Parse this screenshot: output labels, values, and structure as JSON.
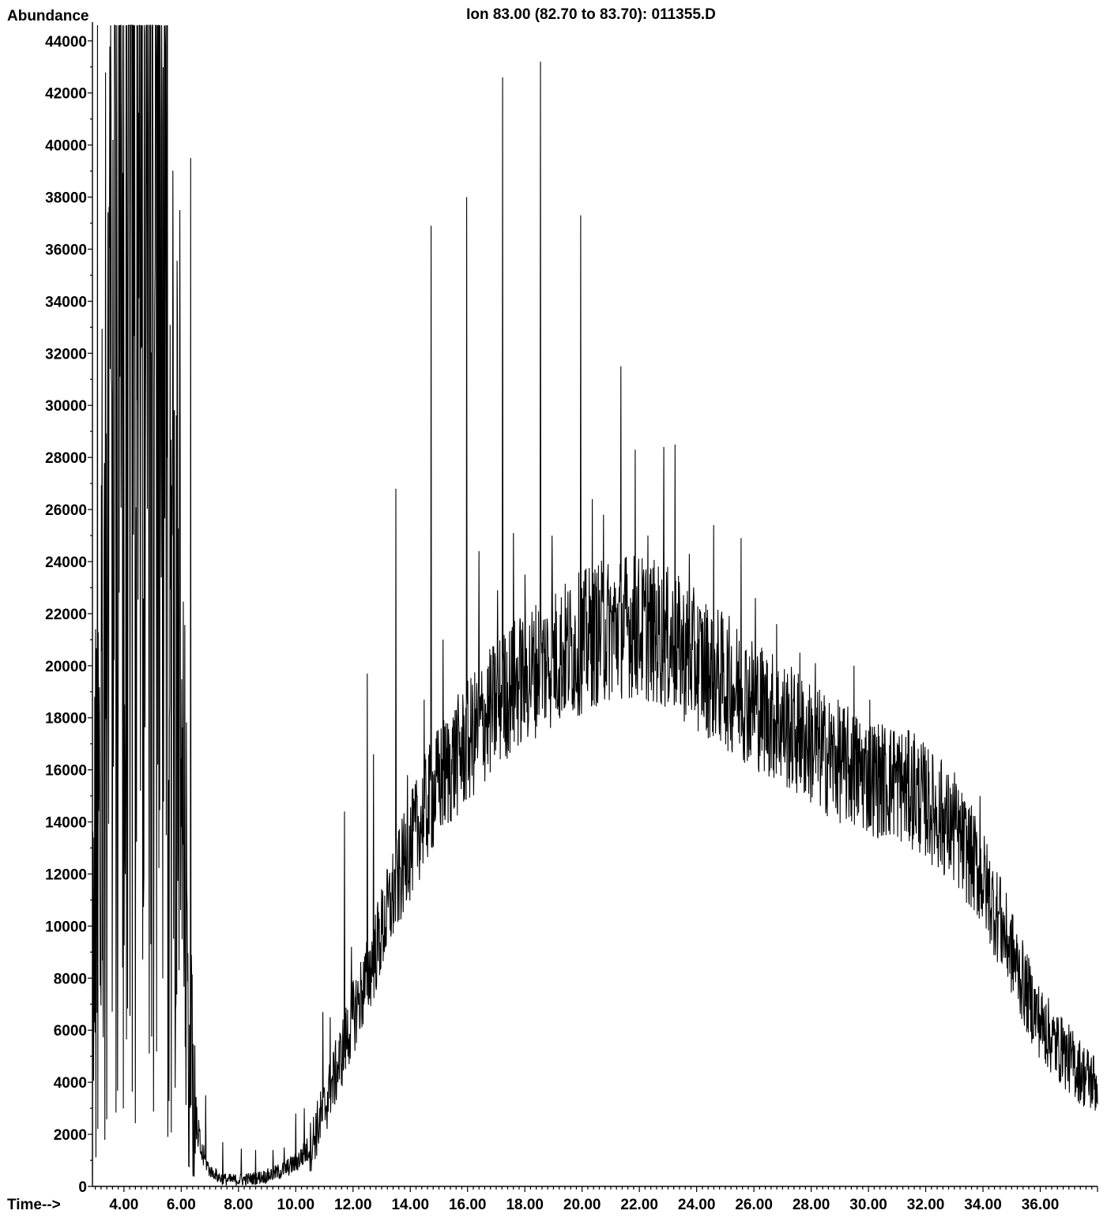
{
  "chart_data": {
    "type": "line",
    "title": "Ion  83.00 (82.70 to 83.70): 011355.D",
    "ylabel": "Abundance",
    "xlabel": "Time-->",
    "xlim": [
      2.9,
      38.0
    ],
    "ylim": [
      0,
      44600
    ],
    "x_ticks": [
      "4.00",
      "6.00",
      "8.00",
      "10.00",
      "12.00",
      "14.00",
      "16.00",
      "18.00",
      "20.00",
      "22.00",
      "24.00",
      "26.00",
      "28.00",
      "30.00",
      "32.00",
      "34.00",
      "36.00"
    ],
    "y_ticks": [
      "0",
      "2000",
      "4000",
      "6000",
      "8000",
      "10000",
      "12000",
      "14000",
      "16000",
      "18000",
      "20000",
      "22000",
      "24000",
      "26000",
      "28000",
      "30000",
      "32000",
      "34000",
      "36000",
      "38000",
      "40000",
      "42000",
      "44000"
    ],
    "grid": false,
    "series": [
      {
        "x": [
          2.95,
          3.1,
          3.3,
          3.5,
          3.7,
          3.9,
          4.1,
          4.3,
          4.5,
          4.7,
          4.9,
          5.1,
          5.3,
          5.5,
          5.7,
          5.9,
          6.1,
          6.3,
          6.5,
          6.7,
          7.0,
          7.3,
          7.6,
          8.0,
          8.5,
          9.0,
          9.5,
          10.0,
          10.5,
          11.0,
          11.5,
          12.0,
          12.5,
          13.0,
          13.5,
          14.0,
          14.5,
          15.0,
          15.5,
          16.0,
          16.5,
          17.0,
          17.5,
          18.0,
          18.5,
          19.0,
          19.5,
          20.0,
          20.5,
          21.0,
          21.5,
          22.0,
          22.5,
          23.0,
          23.5,
          24.0,
          24.5,
          25.0,
          25.5,
          26.0,
          26.5,
          27.0,
          27.5,
          28.0,
          28.5,
          29.0,
          29.5,
          30.0,
          30.5,
          31.0,
          31.5,
          32.0,
          32.5,
          33.0,
          33.5,
          34.0,
          34.5,
          35.0,
          35.5,
          36.0,
          36.5,
          37.0,
          37.5,
          38.0
        ],
        "values": [
          9000,
          15000,
          20000,
          30000,
          33000,
          35000,
          38000,
          38000,
          38000,
          38000,
          37000,
          34000,
          30000,
          26000,
          22000,
          18000,
          12000,
          5500,
          2500,
          1300,
          600,
          350,
          250,
          250,
          300,
          400,
          600,
          900,
          1500,
          3000,
          4700,
          6500,
          8000,
          9800,
          11500,
          13000,
          14400,
          15500,
          16300,
          17000,
          17800,
          18500,
          19100,
          19600,
          20000,
          20300,
          20600,
          20900,
          21200,
          21400,
          21600,
          21500,
          21300,
          21000,
          20600,
          20200,
          19800,
          19400,
          19000,
          18600,
          18200,
          17800,
          17400,
          17000,
          16600,
          16300,
          16000,
          15800,
          15600,
          15500,
          15200,
          14800,
          14200,
          13600,
          12800,
          11800,
          10400,
          9000,
          7500,
          6300,
          5500,
          4900,
          4300,
          3900
        ],
        "peaks": [
          {
            "x": 3.08,
            "y": 44600
          },
          {
            "x": 3.62,
            "y": 40200
          },
          {
            "x": 3.75,
            "y": 44600
          },
          {
            "x": 5.95,
            "y": 37500
          },
          {
            "x": 6.33,
            "y": 39500
          },
          {
            "x": 6.85,
            "y": 3500
          },
          {
            "x": 7.45,
            "y": 1700
          },
          {
            "x": 8.1,
            "y": 1450
          },
          {
            "x": 8.6,
            "y": 1400
          },
          {
            "x": 9.2,
            "y": 1400
          },
          {
            "x": 9.6,
            "y": 1500
          },
          {
            "x": 10.0,
            "y": 2800
          },
          {
            "x": 10.3,
            "y": 3000
          },
          {
            "x": 10.95,
            "y": 6700
          },
          {
            "x": 11.2,
            "y": 6500
          },
          {
            "x": 11.7,
            "y": 14400
          },
          {
            "x": 11.95,
            "y": 9200
          },
          {
            "x": 12.5,
            "y": 19700
          },
          {
            "x": 12.72,
            "y": 16600
          },
          {
            "x": 13.5,
            "y": 26800
          },
          {
            "x": 13.9,
            "y": 15800
          },
          {
            "x": 14.48,
            "y": 18700
          },
          {
            "x": 14.72,
            "y": 36900
          },
          {
            "x": 15.15,
            "y": 21000
          },
          {
            "x": 15.6,
            "y": 18300
          },
          {
            "x": 15.97,
            "y": 38000
          },
          {
            "x": 16.4,
            "y": 24400
          },
          {
            "x": 17.05,
            "y": 22900
          },
          {
            "x": 17.22,
            "y": 42600
          },
          {
            "x": 17.6,
            "y": 25100
          },
          {
            "x": 18.0,
            "y": 23500
          },
          {
            "x": 18.55,
            "y": 43200
          },
          {
            "x": 18.95,
            "y": 25000
          },
          {
            "x": 19.95,
            "y": 37300
          },
          {
            "x": 20.35,
            "y": 26400
          },
          {
            "x": 20.75,
            "y": 25800
          },
          {
            "x": 21.35,
            "y": 31500
          },
          {
            "x": 21.85,
            "y": 28300
          },
          {
            "x": 22.3,
            "y": 25000
          },
          {
            "x": 22.85,
            "y": 28400
          },
          {
            "x": 23.25,
            "y": 28500
          },
          {
            "x": 23.75,
            "y": 24300
          },
          {
            "x": 24.6,
            "y": 25400
          },
          {
            "x": 25.55,
            "y": 24900
          },
          {
            "x": 26.05,
            "y": 22600
          },
          {
            "x": 26.8,
            "y": 21600
          },
          {
            "x": 27.6,
            "y": 20500
          },
          {
            "x": 28.15,
            "y": 20100
          },
          {
            "x": 29.5,
            "y": 20000
          },
          {
            "x": 30.05,
            "y": 18700
          },
          {
            "x": 30.9,
            "y": 17500
          },
          {
            "x": 31.6,
            "y": 17400
          },
          {
            "x": 32.55,
            "y": 16400
          },
          {
            "x": 33.0,
            "y": 15900
          },
          {
            "x": 33.9,
            "y": 15000
          },
          {
            "x": 34.6,
            "y": 11900
          },
          {
            "x": 35.4,
            "y": 9200
          },
          {
            "x": 36.2,
            "y": 7000
          },
          {
            "x": 36.8,
            "y": 6100
          },
          {
            "x": 37.5,
            "y": 4900
          }
        ]
      }
    ]
  }
}
